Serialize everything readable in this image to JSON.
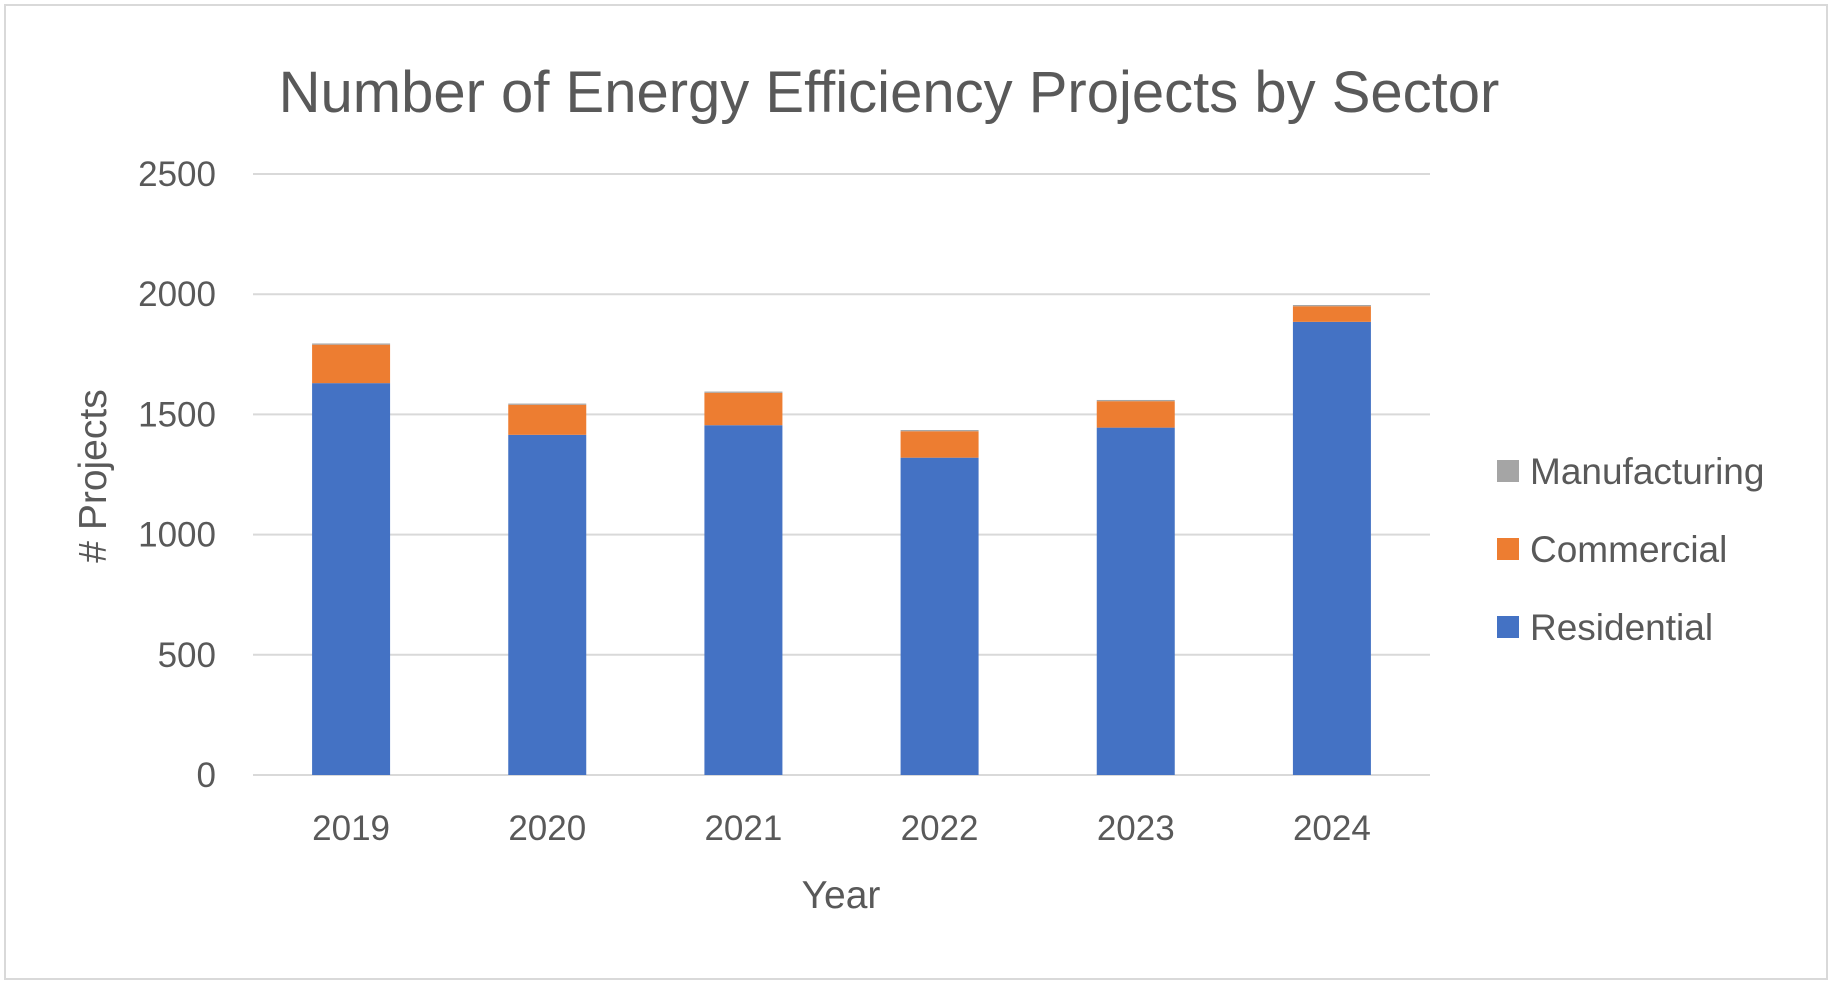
{
  "chart_data": {
    "type": "bar",
    "stacked": true,
    "title": "Number of Energy Efficiency Projects by Sector",
    "xlabel": "Year",
    "ylabel": "# Projects",
    "categories": [
      "2019",
      "2020",
      "2021",
      "2022",
      "2023",
      "2024"
    ],
    "ylim": [
      0,
      2500
    ],
    "yticks": [
      0,
      500,
      1000,
      1500,
      2000,
      2500
    ],
    "grid": true,
    "legend_position": "right",
    "series": [
      {
        "name": "Residential",
        "color": "#4472c4",
        "values": [
          1630,
          1415,
          1455,
          1320,
          1445,
          1885
        ]
      },
      {
        "name": "Commercial",
        "color": "#ed7d31",
        "values": [
          160,
          125,
          135,
          110,
          110,
          65
        ]
      },
      {
        "name": "Manufacturing",
        "color": "#a5a5a5",
        "values": [
          5,
          5,
          5,
          5,
          5,
          5
        ]
      }
    ],
    "legend_order": [
      "Manufacturing",
      "Commercial",
      "Residential"
    ]
  }
}
